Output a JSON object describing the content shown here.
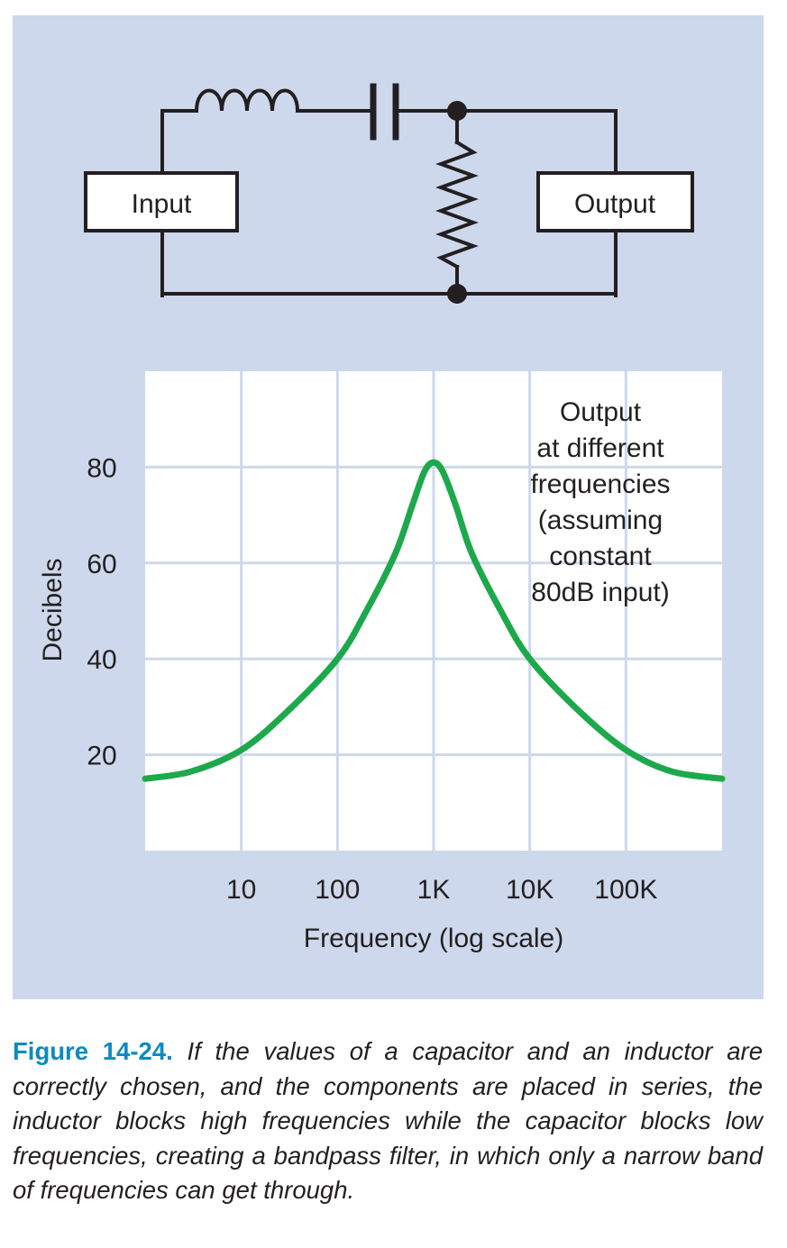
{
  "diagram": {
    "input_label": "Input",
    "output_label": "Output"
  },
  "chart_data": {
    "type": "line",
    "title": "",
    "xlabel": "Frequency (log scale)",
    "ylabel": "Decibels",
    "x_scale": "log",
    "x_ticks": [
      {
        "value": 10,
        "label": "10"
      },
      {
        "value": 100,
        "label": "100"
      },
      {
        "value": 1000,
        "label": "1K"
      },
      {
        "value": 10000,
        "label": "10K"
      },
      {
        "value": 100000,
        "label": "100K"
      }
    ],
    "y_ticks": [
      20,
      40,
      60,
      80
    ],
    "xlim": [
      1,
      1000000
    ],
    "ylim": [
      0,
      100
    ],
    "grid": true,
    "annotation": [
      "Output",
      "at different",
      "frequencies",
      "(assuming",
      "constant",
      "80dB input)"
    ],
    "series": [
      {
        "color": "#1da94b",
        "x": [
          1,
          3,
          10,
          30,
          100,
          200,
          400,
          600,
          800,
          1000,
          1250,
          1700,
          2500,
          5000,
          10000,
          33000,
          100000,
          300000,
          1000000
        ],
        "y": [
          15,
          16.5,
          21,
          29,
          40,
          50,
          62,
          72,
          79,
          81,
          79,
          72,
          62,
          50,
          40,
          29,
          21,
          16.5,
          15
        ]
      }
    ],
    "colors": {
      "panel": "#cdd8ec",
      "plot": "#ffffff",
      "grid": "#cdd8ec",
      "line": "#1da94b",
      "caption_label": "#0b8bc1"
    }
  },
  "caption": {
    "label": "Figure 14-24.",
    "text": "If the values of a capacitor and an inductor are correctly chosen, and the components are placed in series, the inductor blocks high frequencies while the capacitor blocks low frequencies, creating a bandpass filter, in which only a narrow band of frequencies can get through."
  }
}
